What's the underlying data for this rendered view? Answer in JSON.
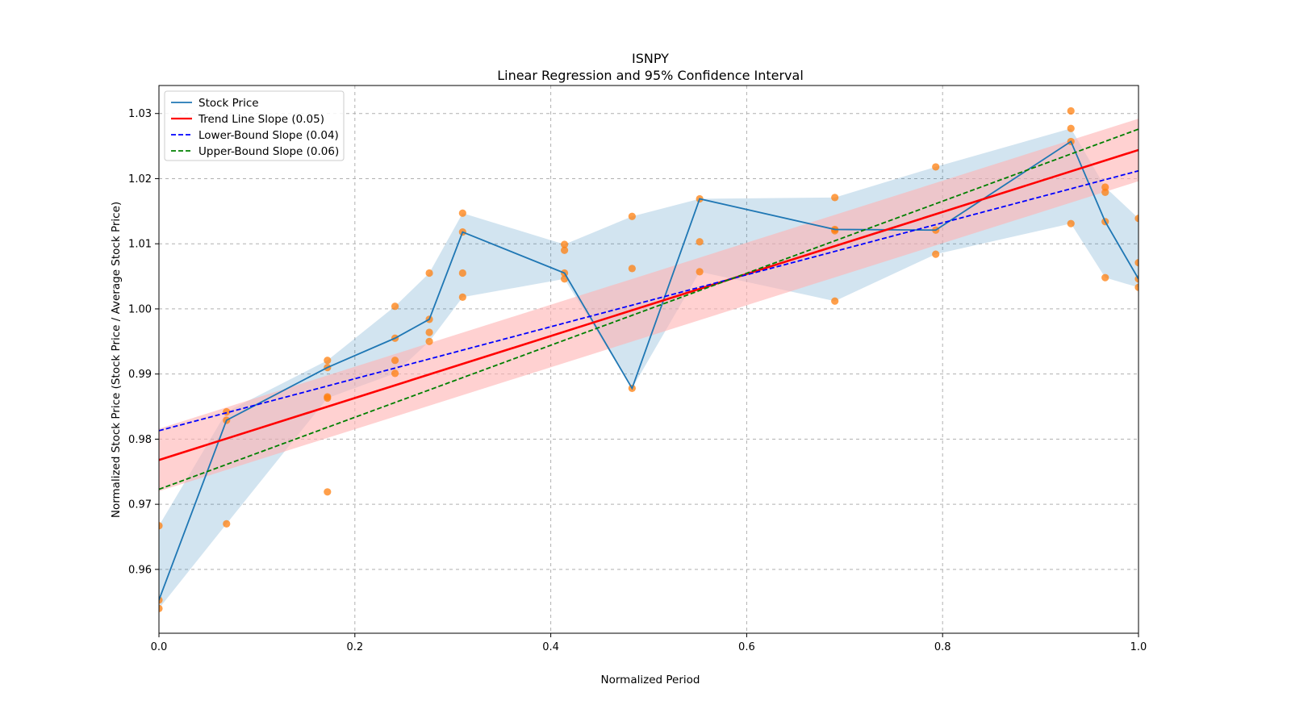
{
  "chart_data": {
    "type": "line",
    "title": "ISNPY",
    "subtitle": "Linear Regression and 95% Confidence Interval",
    "xlabel": "Normalized Period",
    "ylabel": "Normalized Stock Price (Stock Price / Average Stock Price)",
    "xlim": [
      0,
      1
    ],
    "ylim": [
      0.9502,
      1.0343
    ],
    "x_ticks": [
      0,
      0.2,
      0.4,
      0.6,
      0.8,
      1.0
    ],
    "x_tick_labels": [
      "0.0",
      "0.2",
      "0.4",
      "0.6",
      "0.8",
      "1.0"
    ],
    "y_ticks": [
      0.96,
      0.97,
      0.98,
      0.99,
      1.0,
      1.01,
      1.02,
      1.03
    ],
    "y_tick_labels": [
      "0.96",
      "0.97",
      "0.98",
      "0.99",
      "1.00",
      "1.01",
      "1.02",
      "1.03"
    ],
    "grid": true,
    "legend_position": "top-left",
    "colors": {
      "stock": "#1f77b4",
      "band": "#1f77b4",
      "trend": "#ff0000",
      "trend_band": "#ffb3b3",
      "lower": "#0000ff",
      "upper": "#008000",
      "points": "#ff7f0e"
    },
    "series": [
      {
        "name": "Stock Price",
        "style": "solid",
        "x": [
          0,
          0.069,
          0.172,
          0.241,
          0.276,
          0.31,
          0.414,
          0.483,
          0.552,
          0.69,
          0.793,
          0.931,
          0.966,
          1.0
        ],
        "y": [
          0.9553,
          0.9829,
          0.991,
          0.9955,
          0.9984,
          1.0118,
          1.0055,
          0.9878,
          1.0169,
          1.0122,
          1.0121,
          1.0257,
          1.0134,
          1.0046
        ],
        "band_lower": [
          0.954,
          0.967,
          0.9863,
          0.9901,
          0.995,
          1.0018,
          1.0046,
          0.9878,
          1.0057,
          1.0012,
          1.0084,
          1.0131,
          1.0048,
          1.0033
        ],
        "band_upper": [
          0.9667,
          0.9842,
          0.9921,
          1.0004,
          1.0055,
          1.0147,
          1.0099,
          1.0142,
          1.0169,
          1.0171,
          1.0218,
          1.0277,
          1.0187,
          1.0139
        ]
      },
      {
        "name": "Trend Line Slope (0.05)",
        "style": "solid",
        "slope": 0.0476,
        "intercept": 0.9768,
        "band_width": 0.0048
      },
      {
        "name": "Lower-Bound Slope (0.04)",
        "style": "dashed",
        "slope": 0.0399,
        "intercept": 0.9813
      },
      {
        "name": "Upper-Bound Slope (0.06)",
        "style": "dashed",
        "slope": 0.0553,
        "intercept": 0.9723
      }
    ],
    "scatter_points": [
      [
        0,
        0.9667
      ],
      [
        0,
        0.9553
      ],
      [
        0,
        0.954
      ],
      [
        0.069,
        0.9842
      ],
      [
        0.069,
        0.9829
      ],
      [
        0.069,
        0.967
      ],
      [
        0.172,
        0.9921
      ],
      [
        0.172,
        0.991
      ],
      [
        0.172,
        0.9865
      ],
      [
        0.172,
        0.9863
      ],
      [
        0.172,
        0.9719
      ],
      [
        0.241,
        1.0004
      ],
      [
        0.241,
        0.9955
      ],
      [
        0.241,
        0.9921
      ],
      [
        0.241,
        0.9901
      ],
      [
        0.276,
        1.0055
      ],
      [
        0.276,
        0.9984
      ],
      [
        0.276,
        0.9964
      ],
      [
        0.276,
        0.995
      ],
      [
        0.31,
        1.0147
      ],
      [
        0.31,
        1.0118
      ],
      [
        0.31,
        1.0055
      ],
      [
        0.31,
        1.0018
      ],
      [
        0.414,
        1.0099
      ],
      [
        0.414,
        1.009
      ],
      [
        0.414,
        1.0055
      ],
      [
        0.414,
        1.0046
      ],
      [
        0.483,
        1.0142
      ],
      [
        0.483,
        1.0062
      ],
      [
        0.483,
        0.9878
      ],
      [
        0.552,
        1.0169
      ],
      [
        0.552,
        1.0103
      ],
      [
        0.552,
        1.0057
      ],
      [
        0.69,
        1.0171
      ],
      [
        0.69,
        1.0122
      ],
      [
        0.69,
        1.012
      ],
      [
        0.69,
        1.0012
      ],
      [
        0.793,
        1.0218
      ],
      [
        0.793,
        1.0121
      ],
      [
        0.793,
        1.0084
      ],
      [
        0.931,
        1.0304
      ],
      [
        0.931,
        1.0277
      ],
      [
        0.931,
        1.0257
      ],
      [
        0.931,
        1.0131
      ],
      [
        0.966,
        1.0187
      ],
      [
        0.966,
        1.0179
      ],
      [
        0.966,
        1.0134
      ],
      [
        0.966,
        1.0048
      ],
      [
        1.0,
        1.0139
      ],
      [
        1.0,
        1.0071
      ],
      [
        1.0,
        1.0046
      ],
      [
        1.0,
        1.0033
      ]
    ]
  }
}
